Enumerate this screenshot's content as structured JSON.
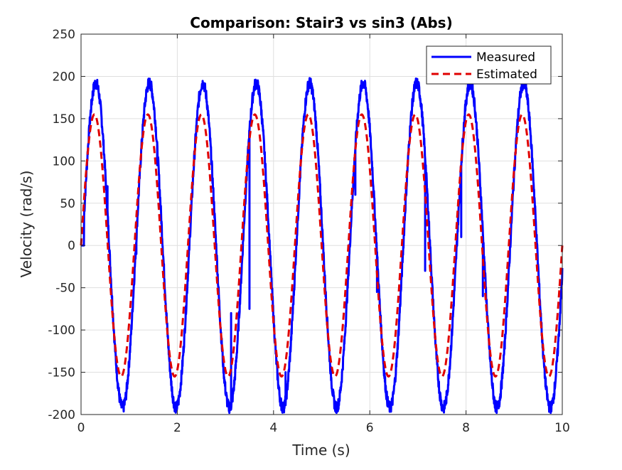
{
  "chart_data": {
    "type": "line",
    "title": "Comparison: Stair3 vs sin3 (Abs)",
    "xlabel": "Time (s)",
    "ylabel": "Velocity (rad/s)",
    "xlim": [
      0,
      10
    ],
    "ylim": [
      -200,
      250
    ],
    "x_ticks": [
      0,
      2,
      4,
      6,
      8,
      10
    ],
    "x_tick_labels": [
      "0",
      "2",
      "4",
      "6",
      "8",
      "10"
    ],
    "y_ticks": [
      -200,
      -150,
      -100,
      -50,
      0,
      50,
      100,
      150,
      200,
      250
    ],
    "y_tick_labels": [
      "-200",
      "-150",
      "-100",
      "-50",
      "0",
      "50",
      "100",
      "150",
      "200",
      "250"
    ],
    "grid": true,
    "legend_position": "top-right",
    "frequency_hz": 0.9,
    "series": [
      {
        "name": "Measured",
        "color": "#0000ff",
        "style": "solid",
        "amplitude": 192,
        "phase_lag_s": 0.03,
        "peaks": [
          {
            "x": 0.3,
            "y": 195
          },
          {
            "x": 0.85,
            "y": -192
          },
          {
            "x": 1.41,
            "y": 195
          },
          {
            "x": 1.96,
            "y": -194
          },
          {
            "x": 2.52,
            "y": 195
          },
          {
            "x": 3.07,
            "y": -196
          },
          {
            "x": 3.63,
            "y": 196
          },
          {
            "x": 4.18,
            "y": -194
          },
          {
            "x": 4.74,
            "y": 196
          },
          {
            "x": 5.29,
            "y": -192
          },
          {
            "x": 5.85,
            "y": 198
          },
          {
            "x": 6.4,
            "y": -192
          },
          {
            "x": 6.96,
            "y": 196
          },
          {
            "x": 7.51,
            "y": -194
          },
          {
            "x": 8.07,
            "y": 196
          },
          {
            "x": 8.62,
            "y": -192
          },
          {
            "x": 9.18,
            "y": 196
          },
          {
            "x": 9.73,
            "y": -194
          }
        ],
        "spikes": [
          {
            "x": 0.55,
            "y": 70
          },
          {
            "x": 1.15,
            "y": -10
          },
          {
            "x": 1.58,
            "y": 95
          },
          {
            "x": 2.25,
            "y": 5
          },
          {
            "x": 3.12,
            "y": -80
          },
          {
            "x": 3.5,
            "y": -75
          },
          {
            "x": 4.25,
            "y": -150
          },
          {
            "x": 5.7,
            "y": 60
          },
          {
            "x": 6.15,
            "y": -55
          },
          {
            "x": 7.15,
            "y": -30
          },
          {
            "x": 7.9,
            "y": 10
          },
          {
            "x": 8.35,
            "y": -60
          }
        ]
      },
      {
        "name": "Estimated",
        "color": "#e00000",
        "style": "dashed",
        "amplitude": 155,
        "phase_lag_s": 0.0
      }
    ]
  }
}
